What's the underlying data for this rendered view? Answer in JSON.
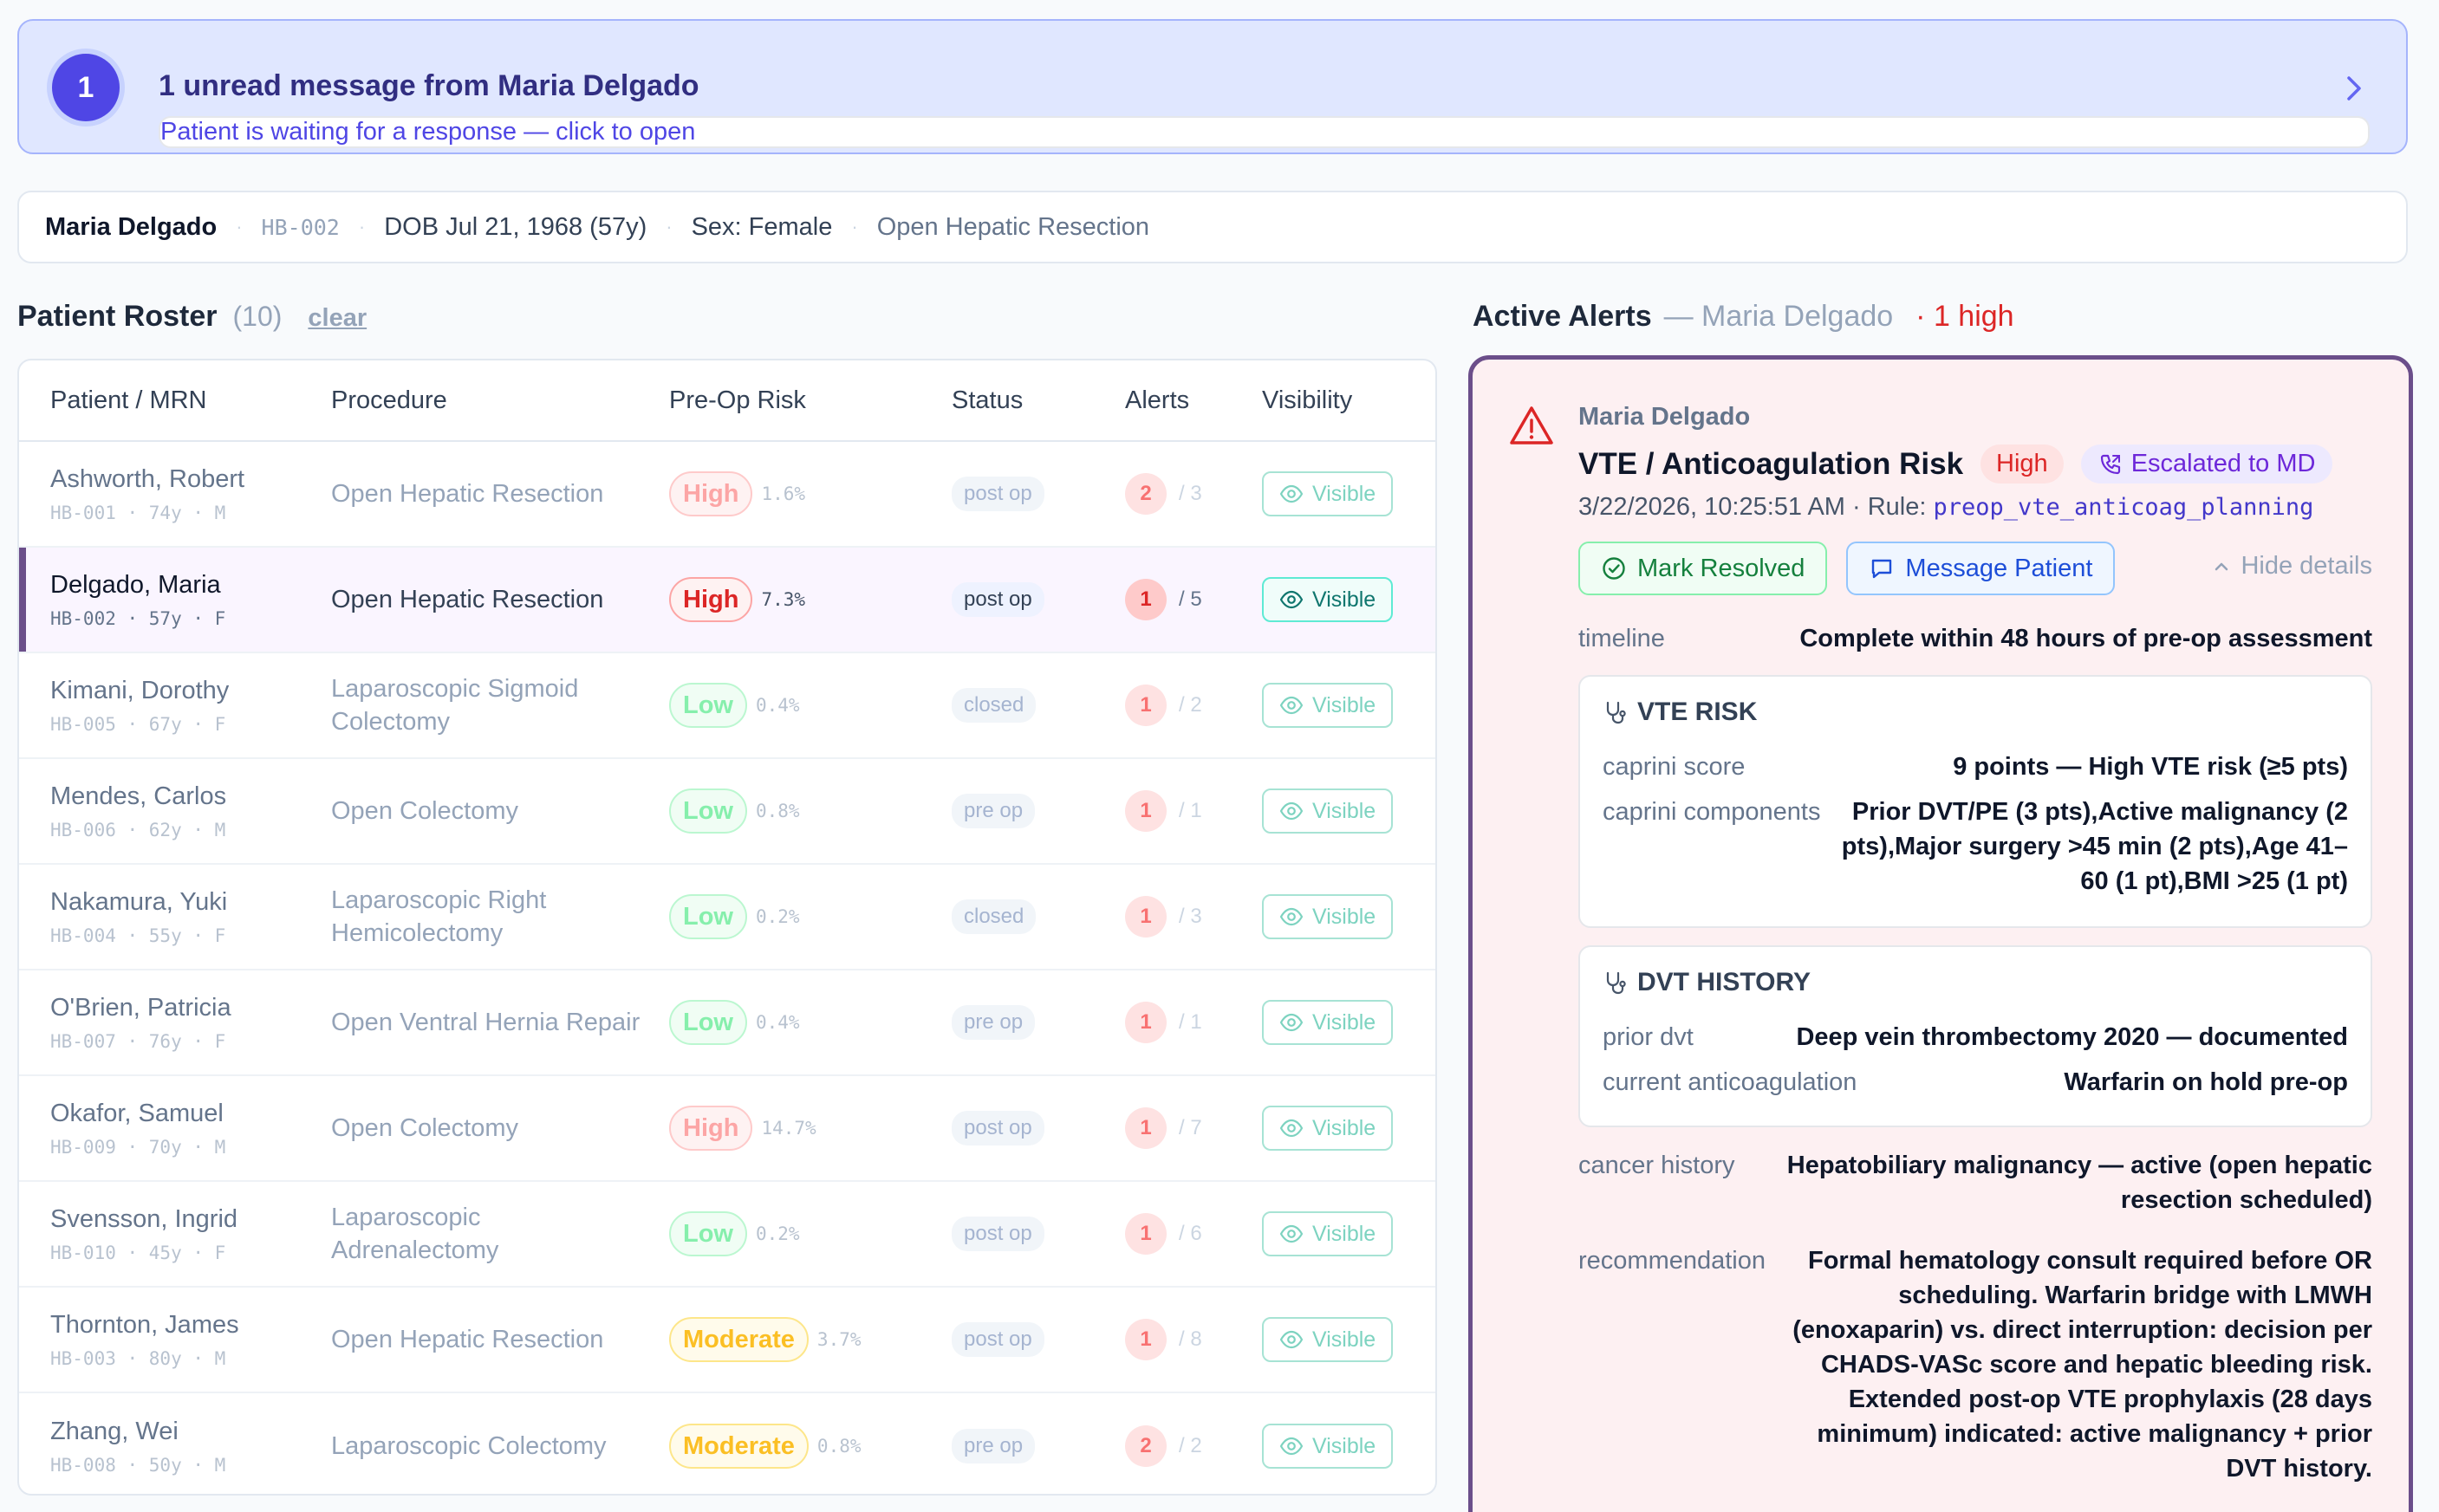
{
  "banner": {
    "count": "1",
    "title": "1 unread message from Maria Delgado",
    "subtitle": "Patient is waiting for a response — click to open",
    "icon": "chevron-right-icon"
  },
  "patient_header": {
    "name": "Maria Delgado",
    "mrn": "HB-002",
    "dob": "DOB Jul 21, 1968 (57y)",
    "sex": "Sex: Female",
    "procedure": "Open Hepatic Resection"
  },
  "roster": {
    "title": "Patient Roster",
    "count": "(10)",
    "clear": "clear",
    "columns": [
      "Patient / MRN",
      "Procedure",
      "Pre-Op Risk",
      "Status",
      "Alerts",
      "Visibility"
    ],
    "rows": [
      {
        "name": "Ashworth, Robert",
        "meta": "HB-001 · 74y · M",
        "procedure": "Open Hepatic Resection",
        "risk": "High",
        "risk_level": "high",
        "pct": "1.6%",
        "status": "post op",
        "alerts": "2",
        "alerts_total": "/ 3",
        "visibility": "Visible"
      },
      {
        "name": "Delgado, Maria",
        "meta": "HB-002 · 57y · F",
        "procedure": "Open Hepatic Resection",
        "risk": "High",
        "risk_level": "high",
        "pct": "7.3%",
        "status": "post op",
        "alerts": "1",
        "alerts_total": "/ 5",
        "visibility": "Visible",
        "selected": true
      },
      {
        "name": "Kimani, Dorothy",
        "meta": "HB-005 · 67y · F",
        "procedure": "Laparoscopic Sigmoid Colectomy",
        "risk": "Low",
        "risk_level": "low",
        "pct": "0.4%",
        "status": "closed",
        "alerts": "1",
        "alerts_total": "/ 2",
        "visibility": "Visible"
      },
      {
        "name": "Mendes, Carlos",
        "meta": "HB-006 · 62y · M",
        "procedure": "Open Colectomy",
        "risk": "Low",
        "risk_level": "low",
        "pct": "0.8%",
        "status": "pre op",
        "alerts": "1",
        "alerts_total": "/ 1",
        "visibility": "Visible"
      },
      {
        "name": "Nakamura, Yuki",
        "meta": "HB-004 · 55y · F",
        "procedure": "Laparoscopic Right Hemicolectomy",
        "risk": "Low",
        "risk_level": "low",
        "pct": "0.2%",
        "status": "closed",
        "alerts": "1",
        "alerts_total": "/ 3",
        "visibility": "Visible"
      },
      {
        "name": "O'Brien, Patricia",
        "meta": "HB-007 · 76y · F",
        "procedure": "Open Ventral Hernia Repair",
        "risk": "Low",
        "risk_level": "low",
        "pct": "0.4%",
        "status": "pre op",
        "alerts": "1",
        "alerts_total": "/ 1",
        "visibility": "Visible"
      },
      {
        "name": "Okafor, Samuel",
        "meta": "HB-009 · 70y · M",
        "procedure": "Open Colectomy",
        "risk": "High",
        "risk_level": "high",
        "pct": "14.7%",
        "status": "post op",
        "alerts": "1",
        "alerts_total": "/ 7",
        "visibility": "Visible"
      },
      {
        "name": "Svensson, Ingrid",
        "meta": "HB-010 · 45y · F",
        "procedure": "Laparoscopic Adrenalectomy",
        "risk": "Low",
        "risk_level": "low",
        "pct": "0.2%",
        "status": "post op",
        "alerts": "1",
        "alerts_total": "/ 6",
        "visibility": "Visible"
      },
      {
        "name": "Thornton, James",
        "meta": "HB-003 · 80y · M",
        "procedure": "Open Hepatic Resection",
        "risk": "Moderate",
        "risk_level": "mod",
        "pct": "3.7%",
        "status": "post op",
        "alerts": "1",
        "alerts_total": "/ 8",
        "visibility": "Visible"
      },
      {
        "name": "Zhang, Wei",
        "meta": "HB-008 · 50y · M",
        "procedure": "Laparoscopic Colectomy",
        "risk": "Moderate",
        "risk_level": "mod",
        "pct": "0.8%",
        "status": "pre op",
        "alerts": "2",
        "alerts_total": "/ 2",
        "visibility": "Visible"
      }
    ]
  },
  "alerts": {
    "title": "Active Alerts",
    "patient": "— Maria Delgado",
    "high_count": "· 1 high",
    "card": {
      "patient": "Maria Delgado",
      "title": "VTE / Anticoagulation Risk",
      "severity": "High",
      "escalation": "Escalated to MD",
      "timestamp": "3/22/2026, 10:25:51 AM · Rule: ",
      "rule": "preop_vte_anticoag_planning",
      "resolve_label": "Mark Resolved",
      "message_label": "Message Patient",
      "hide_label": "Hide details",
      "timeline_key": "timeline",
      "timeline_value": "Complete within 48 hours of pre-op assessment",
      "vte": {
        "title": "VTE RISK",
        "caprini_score_key": "caprini score",
        "caprini_score_value": "9 points — High VTE risk (≥5 pts)",
        "components_key": "caprini components",
        "components_value": "Prior DVT/PE (3 pts),Active malignancy (2 pts),Major surgery >45 min (2 pts),Age 41–60 (1 pt),BMI >25 (1 pt)"
      },
      "dvt": {
        "title": "DVT HISTORY",
        "prior_key": "prior dvt",
        "prior_value": "Deep vein thrombectomy 2020 — documented",
        "anticoag_key": "current anticoagulation",
        "anticoag_value": "Warfarin on hold pre-op"
      },
      "cancer_key": "cancer history",
      "cancer_value": "Hepatobiliary malignancy — active (open hepatic resection scheduled)",
      "rec_key": "recommendation",
      "rec_value": "Formal hematology consult required before OR scheduling. Warfarin bridge with LMWH (enoxaparin) vs. direct interruption: decision per CHADS-VASc score and hepatic bleeding risk. Extended post-op VTE prophylaxis (28 days minimum) indicated: active malignancy + prior DVT history."
    }
  },
  "colors": {
    "accent": "#4f46e5",
    "selected_bar": "#6b4e8a",
    "high": "#dc2626",
    "low": "#16a34a",
    "moderate": "#d97706"
  }
}
